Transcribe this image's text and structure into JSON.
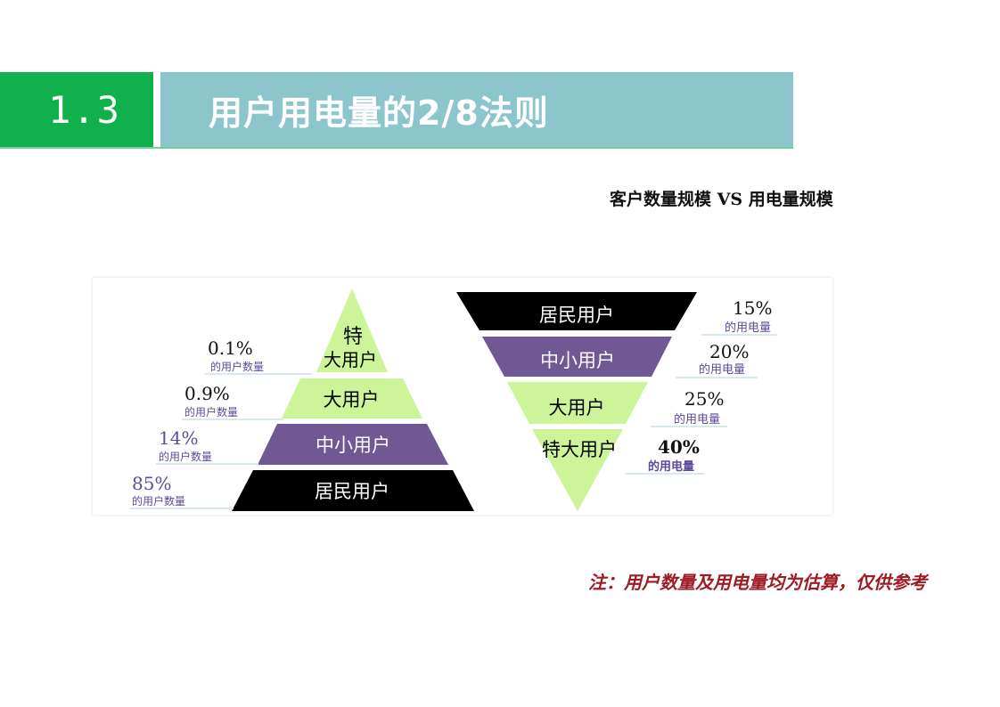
{
  "header": {
    "section_number": "1.3",
    "title": "用户用电量的2/8法则"
  },
  "subtitle": "客户数量规模 VS 用电量规模",
  "customer_pyramid": {
    "layers": [
      {
        "label_line1": "特",
        "label_line2": "大用户",
        "percent": "0.1%",
        "caption": "的用户数量",
        "color": "#ccf59a"
      },
      {
        "label": "大用户",
        "percent": "0.9%",
        "caption": "的用户数量",
        "color": "#ccf59a"
      },
      {
        "label": "中小用户",
        "percent": "14%",
        "caption": "的用户数量",
        "color": "#6f5894"
      },
      {
        "label": "居民用户",
        "percent": "85%",
        "caption": "的用户数量",
        "color": "#000000"
      }
    ]
  },
  "consumption_pyramid": {
    "layers": [
      {
        "label": "居民用户",
        "percent": "15%",
        "caption": "的用电量",
        "color": "#000000"
      },
      {
        "label": "中小用户",
        "percent": "20%",
        "caption": "的用电量",
        "color": "#6f5894"
      },
      {
        "label": "大用户",
        "percent": "25%",
        "caption": "的用电量",
        "color": "#ccf59a"
      },
      {
        "label": "特大用户",
        "percent": "40%",
        "caption": "的用电量",
        "color": "#ccf59a"
      }
    ]
  },
  "note": "注：用户数量及用电量均为估算，仅供参考"
}
